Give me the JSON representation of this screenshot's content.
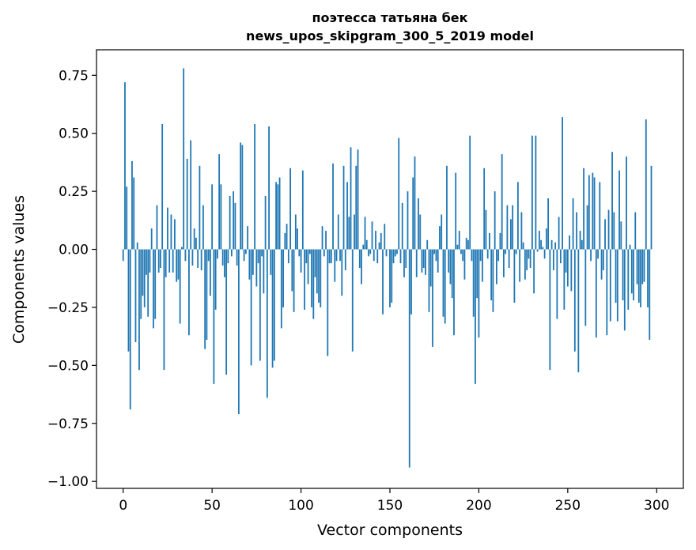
{
  "chart_data": {
    "type": "bar",
    "title_line1": "поэтесса татьяна бек",
    "title_line2": "news_upos_skipgram_300_5_2019 model",
    "xlabel": "Vector components",
    "ylabel": "Components values",
    "xlim": [
      -15,
      315
    ],
    "ylim": [
      -1.03,
      0.86
    ],
    "xticks": [
      0,
      50,
      100,
      150,
      200,
      250,
      300
    ],
    "xtick_labels": [
      "0",
      "50",
      "100",
      "150",
      "200",
      "250",
      "300"
    ],
    "yticks": [
      0.75,
      0.5,
      0.25,
      0.0,
      -0.25,
      -0.5,
      -0.75,
      -1.0
    ],
    "ytick_labels": [
      "0.75",
      "0.50",
      "0.25",
      "0.00",
      "−0.25",
      "−0.50",
      "−0.75",
      "−1.00"
    ],
    "bar_color": "#1f77b4",
    "values": [
      -0.05,
      0.72,
      0.27,
      -0.44,
      -0.69,
      0.38,
      0.31,
      -0.4,
      0.03,
      -0.52,
      -0.3,
      -0.2,
      -0.25,
      -0.11,
      -0.29,
      -0.1,
      0.09,
      -0.34,
      -0.3,
      0.19,
      -0.1,
      -0.08,
      0.54,
      -0.52,
      -0.12,
      0.18,
      -0.1,
      0.15,
      -0.1,
      0.13,
      -0.14,
      -0.13,
      -0.32,
      0.01,
      0.78,
      -0.05,
      0.39,
      -0.37,
      0.47,
      -0.07,
      0.09,
      0.05,
      -0.08,
      0.36,
      -0.09,
      0.19,
      -0.43,
      -0.39,
      -0.05,
      -0.2,
      0.28,
      -0.58,
      -0.26,
      -0.04,
      0.41,
      0.28,
      -0.07,
      -0.12,
      -0.54,
      -0.06,
      0.23,
      -0.03,
      0.25,
      0.2,
      -0.07,
      -0.71,
      0.46,
      0.45,
      -0.05,
      -0.02,
      0.1,
      -0.13,
      -0.5,
      -0.11,
      0.54,
      -0.16,
      -0.06,
      -0.48,
      -0.03,
      -0.19,
      0.23,
      -0.64,
      0.53,
      -0.11,
      -0.51,
      -0.48,
      0.29,
      0.28,
      0.31,
      -0.34,
      -0.25,
      0.07,
      0.11,
      -0.06,
      0.35,
      -0.18,
      -0.27,
      0.15,
      0.09,
      -0.03,
      -0.1,
      0.34,
      -0.26,
      -0.06,
      -0.15,
      -0.02,
      -0.25,
      -0.3,
      -0.12,
      -0.19,
      -0.23,
      -0.25,
      0.1,
      -0.03,
      0.08,
      -0.46,
      -0.06,
      -0.06,
      0.37,
      -0.14,
      -0.05,
      0.15,
      -0.05,
      -0.2,
      0.36,
      -0.09,
      0.29,
      0.14,
      0.44,
      -0.44,
      0.15,
      0.36,
      0.43,
      -0.08,
      -0.15,
      0.02,
      0.14,
      0.04,
      -0.03,
      -0.02,
      0.12,
      -0.05,
      0.08,
      -0.06,
      0.03,
      0.07,
      -0.28,
      0.11,
      -0.03,
      0.0,
      -0.25,
      -0.23,
      -0.06,
      -0.03,
      -0.02,
      0.48,
      -0.06,
      0.2,
      -0.12,
      -0.08,
      0.25,
      -0.94,
      -0.28,
      0.31,
      0.4,
      -0.12,
      0.22,
      0.15,
      -0.1,
      -0.08,
      -0.11,
      0.04,
      -0.27,
      -0.16,
      -0.42,
      -0.02,
      -0.05,
      -0.1,
      0.1,
      0.15,
      -0.29,
      -0.32,
      0.36,
      -0.1,
      -0.15,
      -0.21,
      -0.37,
      0.33,
      0.02,
      0.08,
      -0.02,
      -0.05,
      -0.13,
      0.05,
      0.04,
      0.49,
      -0.05,
      -0.29,
      -0.58,
      -0.21,
      -0.38,
      -0.05,
      -0.14,
      0.35,
      0.17,
      -0.04,
      0.07,
      -0.22,
      -0.27,
      0.25,
      -0.15,
      -0.05,
      0.07,
      0.41,
      -0.12,
      -0.02,
      0.19,
      -0.08,
      0.13,
      0.19,
      -0.23,
      -0.02,
      0.29,
      -0.14,
      0.16,
      0.03,
      -0.13,
      -0.09,
      -0.04,
      -0.08,
      0.49,
      -0.19,
      0.49,
      -0.01,
      0.08,
      0.04,
      0.01,
      -0.04,
      0.09,
      0.22,
      -0.52,
      0.04,
      -0.09,
      0.03,
      -0.3,
      0.14,
      -0.06,
      0.57,
      -0.26,
      -0.1,
      -0.16,
      0.06,
      -0.18,
      0.22,
      -0.44,
      0.16,
      -0.53,
      0.08,
      0.04,
      0.35,
      -0.33,
      0.19,
      0.32,
      -0.05,
      0.33,
      0.31,
      -0.38,
      -0.04,
      0.29,
      -0.13,
      -0.09,
      0.13,
      -0.37,
      0.17,
      -0.31,
      0.42,
      0.16,
      -0.23,
      -0.31,
      0.34,
      0.12,
      -0.22,
      -0.35,
      0.4,
      -0.26,
      0.02,
      -0.19,
      -0.22,
      0.16,
      -0.15,
      -0.23,
      -0.25,
      -0.15,
      -0.14,
      0.56,
      -0.25,
      -0.39,
      0.36
    ]
  }
}
